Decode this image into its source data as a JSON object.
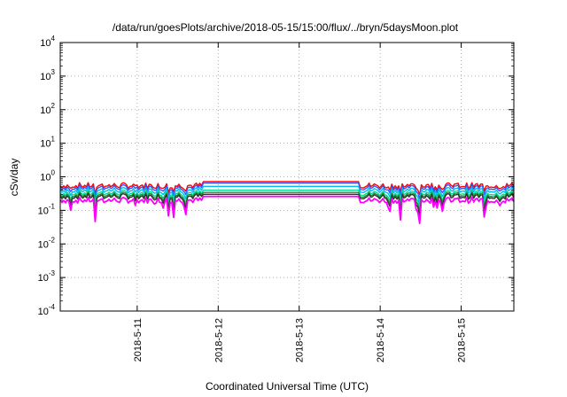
{
  "chart_data": {
    "type": "line",
    "title": "/data/run/goesPlots/archive/2018-05-15/15:00/flux/../bryn/5daysMoon.plot",
    "xlabel": "Coordinated Universal Time (UTC)",
    "ylabel": "cSv/day",
    "yscale": "log",
    "ylim": [
      0.0001,
      10000
    ],
    "xlim_days": [
      10.05,
      15.65
    ],
    "grid": true,
    "legend": "none",
    "x_ticks": [
      {
        "label": "2018-5-11",
        "day": 11
      },
      {
        "label": "2018-5-12",
        "day": 12
      },
      {
        "label": "2018-5-13",
        "day": 13
      },
      {
        "label": "2018-5-14",
        "day": 14
      },
      {
        "label": "2018-5-15",
        "day": 15
      }
    ],
    "y_ticks": [
      {
        "base": "10",
        "exp": "4",
        "value": 10000
      },
      {
        "base": "10",
        "exp": "3",
        "value": 1000
      },
      {
        "base": "10",
        "exp": "2",
        "value": 100
      },
      {
        "base": "10",
        "exp": "1",
        "value": 10
      },
      {
        "base": "10",
        "exp": "0",
        "value": 1
      },
      {
        "base": "10",
        "exp": "-1",
        "value": 0.1
      },
      {
        "base": "10",
        "exp": "-2",
        "value": 0.01
      },
      {
        "base": "10",
        "exp": "-3",
        "value": 0.001
      },
      {
        "base": "10",
        "exp": "-4",
        "value": 0.0001
      }
    ],
    "series": [
      {
        "color": "#ff0000",
        "flat": 0.72,
        "noisy_level": 0.55
      },
      {
        "color": "#3355ff",
        "flat": 0.65,
        "noisy_level": 0.48
      },
      {
        "color": "#00bbee",
        "flat": 0.52,
        "noisy_level": 0.4
      },
      {
        "color": "#00dd99",
        "flat": 0.4,
        "noisy_level": 0.33
      },
      {
        "color": "#228833",
        "flat": 0.34,
        "noisy_level": 0.29
      },
      {
        "color": "#333333",
        "flat": 0.3,
        "noisy_level": 0.26
      },
      {
        "color": "#ff00ff",
        "flat": 0.26,
        "noisy_level": 0.2
      }
    ],
    "flat_interval_days": [
      11.8,
      13.75
    ]
  }
}
